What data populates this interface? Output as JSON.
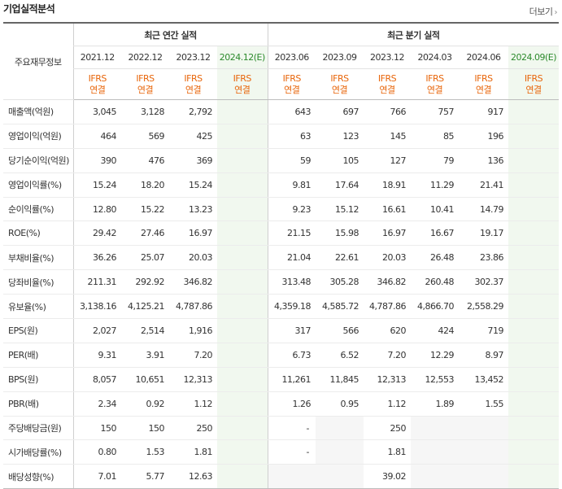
{
  "header": {
    "title": "기업실적분석",
    "more_label": "더보기",
    "more_chevron": "›"
  },
  "table": {
    "row_head_label": "주요재무정보",
    "groups": {
      "annual": "최근 연간 실적",
      "quarterly": "최근 분기 실적"
    },
    "periods": [
      "2021.12",
      "2022.12",
      "2023.12",
      "2024.12(E)",
      "2023.06",
      "2023.09",
      "2023.12",
      "2024.03",
      "2024.06",
      "2024.09(E)"
    ],
    "std_line1": "IFRS",
    "std_line2": "연결",
    "rows": [
      {
        "label": "매출액(억원)",
        "values": [
          "3,045",
          "3,128",
          "2,792",
          "",
          "643",
          "697",
          "766",
          "757",
          "917",
          ""
        ]
      },
      {
        "label": "영업이익(억원)",
        "values": [
          "464",
          "569",
          "425",
          "",
          "63",
          "123",
          "145",
          "85",
          "196",
          ""
        ]
      },
      {
        "label": "당기순이익(억원)",
        "values": [
          "390",
          "476",
          "369",
          "",
          "59",
          "105",
          "127",
          "79",
          "136",
          ""
        ]
      },
      {
        "label": "영업이익률(%)",
        "values": [
          "15.24",
          "18.20",
          "15.24",
          "",
          "9.81",
          "17.64",
          "18.91",
          "11.29",
          "21.41",
          ""
        ]
      },
      {
        "label": "순이익률(%)",
        "values": [
          "12.80",
          "15.22",
          "13.23",
          "",
          "9.23",
          "15.12",
          "16.61",
          "10.41",
          "14.79",
          ""
        ]
      },
      {
        "label": "ROE(%)",
        "values": [
          "29.42",
          "27.46",
          "16.97",
          "",
          "21.15",
          "15.98",
          "16.97",
          "16.67",
          "19.17",
          ""
        ]
      },
      {
        "label": "부채비율(%)",
        "values": [
          "36.26",
          "25.07",
          "20.03",
          "",
          "21.04",
          "22.61",
          "20.03",
          "26.48",
          "23.86",
          ""
        ]
      },
      {
        "label": "당좌비율(%)",
        "values": [
          "211.31",
          "292.92",
          "346.82",
          "",
          "313.48",
          "305.28",
          "346.82",
          "260.48",
          "302.37",
          ""
        ]
      },
      {
        "label": "유보율(%)",
        "values": [
          "3,138.16",
          "4,125.21",
          "4,787.86",
          "",
          "4,359.18",
          "4,585.72",
          "4,787.86",
          "4,866.70",
          "2,558.29",
          ""
        ]
      },
      {
        "label": "EPS(원)",
        "values": [
          "2,027",
          "2,514",
          "1,916",
          "",
          "317",
          "566",
          "620",
          "424",
          "719",
          ""
        ]
      },
      {
        "label": "PER(배)",
        "values": [
          "9.31",
          "3.91",
          "7.20",
          "",
          "6.73",
          "6.52",
          "7.20",
          "12.29",
          "8.97",
          ""
        ]
      },
      {
        "label": "BPS(원)",
        "values": [
          "8,057",
          "10,651",
          "12,313",
          "",
          "11,261",
          "11,845",
          "12,313",
          "12,553",
          "13,452",
          ""
        ]
      },
      {
        "label": "PBR(배)",
        "values": [
          "2.34",
          "0.92",
          "1.12",
          "",
          "1.26",
          "0.95",
          "1.12",
          "1.89",
          "1.55",
          ""
        ]
      },
      {
        "label": "주당배당금(원)",
        "values": [
          "150",
          "150",
          "250",
          "",
          "-",
          "",
          "250",
          "",
          "",
          ""
        ]
      },
      {
        "label": "시가배당률(%)",
        "values": [
          "0.80",
          "1.53",
          "1.81",
          "",
          "-",
          "",
          "1.81",
          "",
          "",
          ""
        ]
      },
      {
        "label": "배당성향(%)",
        "values": [
          "7.01",
          "5.77",
          "12.63",
          "",
          "",
          "",
          "39.02",
          "",
          "",
          ""
        ]
      }
    ],
    "colors": {
      "estimate_bg": "#f1f8ef",
      "ifrs_text": "#e8650a",
      "estimate_header": "#2c8a2c"
    }
  }
}
